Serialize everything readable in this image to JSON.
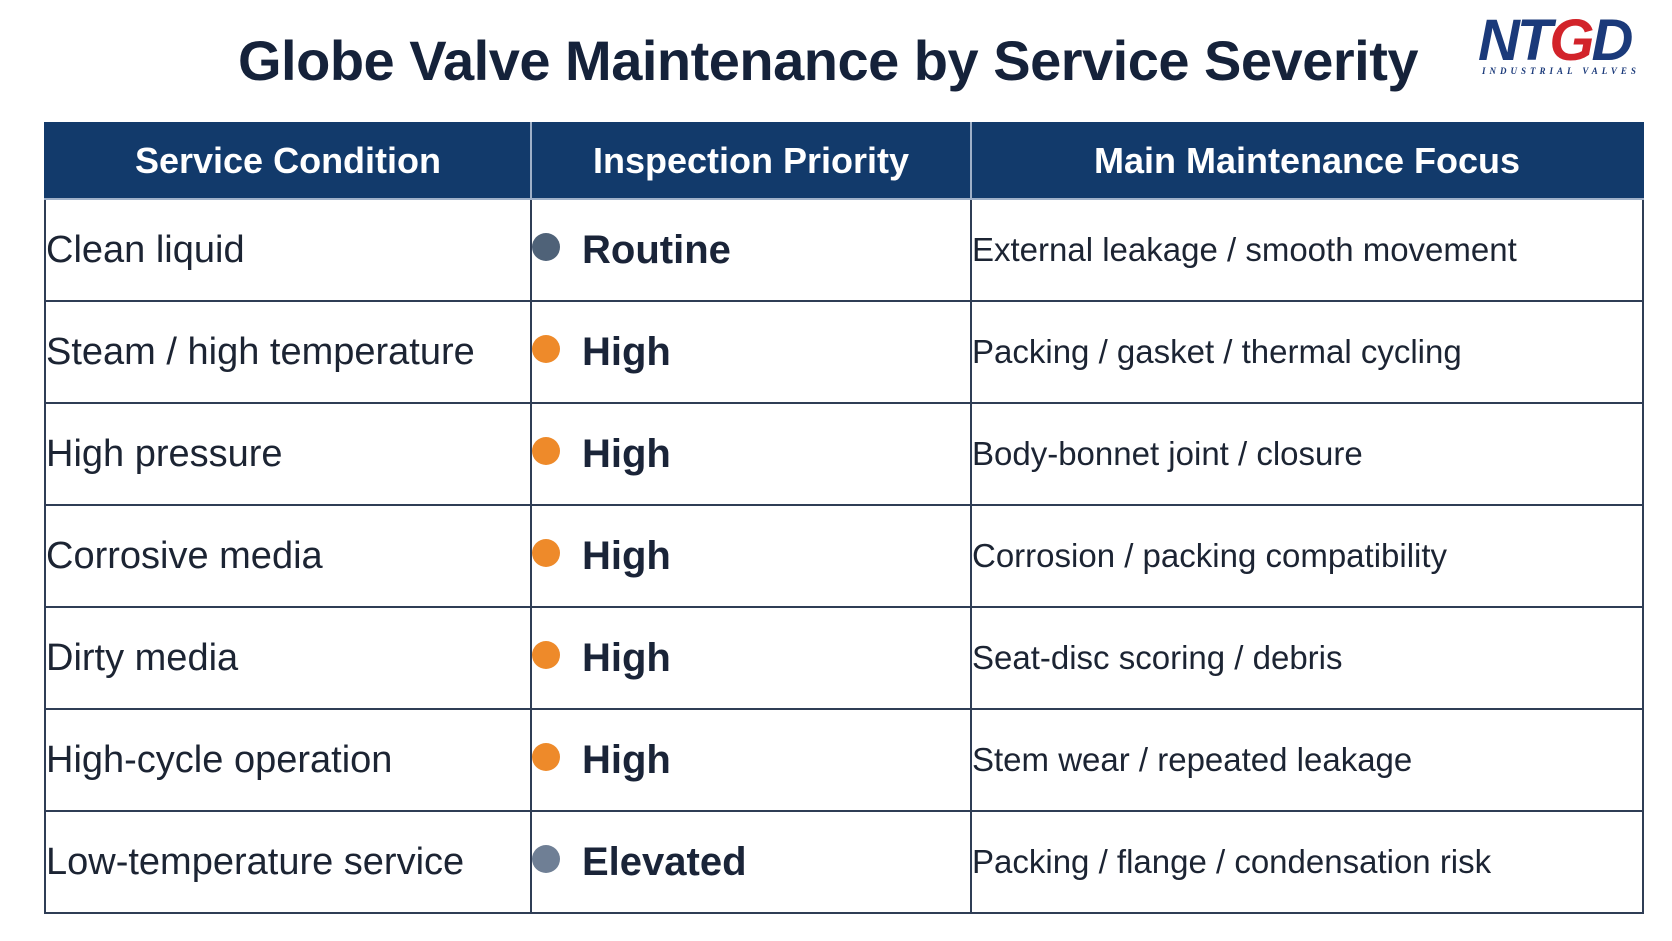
{
  "title": "Globe Valve Maintenance by Service Severity",
  "logo": {
    "text_left": "NT",
    "text_mid": "G",
    "text_right": "D",
    "tagline": "INDUSTRIAL VALVES",
    "colors": {
      "primary": "#1b3a7a",
      "accent": "#d2232a"
    }
  },
  "table": {
    "headers": [
      "Service Condition",
      "Inspection Priority",
      "Main Maintenance Focus"
    ],
    "rows": [
      {
        "condition": "Clean liquid",
        "priority": "Routine",
        "dot_color": "#4f6278",
        "focus": "External leakage / smooth movement"
      },
      {
        "condition": "Steam / high temperature",
        "priority": "High",
        "dot_color": "#ee8a2a",
        "focus": "Packing / gasket / thermal cycling"
      },
      {
        "condition": "High pressure",
        "priority": "High",
        "dot_color": "#ee8a2a",
        "focus": "Body-bonnet joint / closure"
      },
      {
        "condition": "Corrosive media",
        "priority": "High",
        "dot_color": "#ee8a2a",
        "focus": "Corrosion / packing compatibility"
      },
      {
        "condition": "Dirty media",
        "priority": "High",
        "dot_color": "#ee8a2a",
        "focus": "Seat-disc scoring / debris"
      },
      {
        "condition": "High-cycle operation",
        "priority": "High",
        "dot_color": "#ee8a2a",
        "focus": "Stem wear / repeated leakage"
      },
      {
        "condition": "Low-temperature service",
        "priority": "Elevated",
        "dot_color": "#6f7f95",
        "focus": "Packing / flange / condensation risk"
      }
    ]
  }
}
